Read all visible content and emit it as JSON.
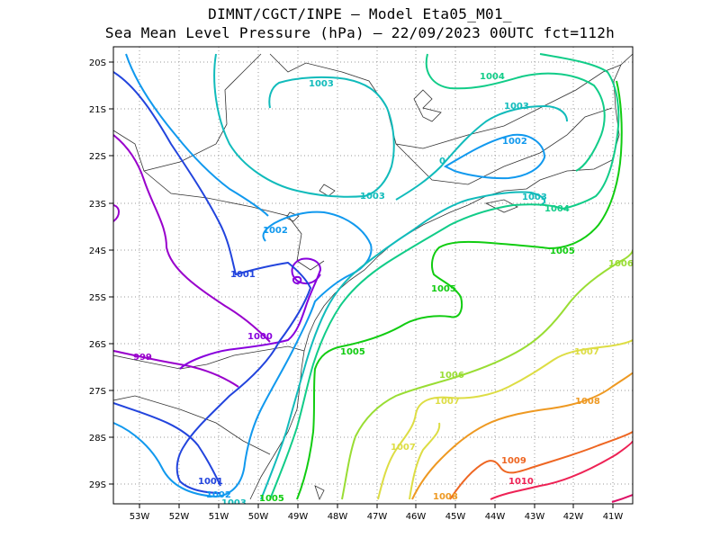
{
  "title": {
    "line1": "DIMNT/CGCT/INPE  —   Model Eta05_M01_",
    "line2": "Sea Mean Level Pressure (hPa) — 22/09/2023 00UTC fct=112h"
  },
  "axes": {
    "lat_labels": [
      "20S",
      "21S",
      "22S",
      "23S",
      "24S",
      "25S",
      "26S",
      "27S",
      "28S",
      "29S"
    ],
    "lon_labels": [
      "53W",
      "52W",
      "51W",
      "50W",
      "49W",
      "48W",
      "47W",
      "46W",
      "45W",
      "44W",
      "43W",
      "42W",
      "41W"
    ]
  },
  "colors": {
    "c999": "#9900cc",
    "c1000": "#8800dd",
    "c1001": "#2244dd",
    "c1002": "#1199ee",
    "c1003": "#11bbbb",
    "c1004": "#11cc88",
    "c1005": "#11cc11",
    "c1006": "#99dd33",
    "c1007": "#dddd44",
    "c1008": "#ee9922",
    "c1009": "#ee6622",
    "c1010": "#ee2255"
  },
  "contour_labels": [
    {
      "id": "1003-a",
      "text": "1003",
      "color": "#11bbbb"
    },
    {
      "id": "1004-a",
      "text": "1004",
      "color": "#11cc88"
    },
    {
      "id": "1003-b",
      "text": "1003",
      "color": "#11bbbb"
    },
    {
      "id": "1002-a",
      "text": "1002",
      "color": "#1199ee"
    },
    {
      "id": "0-a",
      "text": "0",
      "color": "#11bbbb"
    },
    {
      "id": "1003-c",
      "text": "1003",
      "color": "#11bbbb"
    },
    {
      "id": "1003-d",
      "text": "1003",
      "color": "#11bbbb"
    },
    {
      "id": "1004-b",
      "text": "1004",
      "color": "#11cc88"
    },
    {
      "id": "1002-b",
      "text": "1002",
      "color": "#1199ee"
    },
    {
      "id": "1005-a",
      "text": "1005",
      "color": "#11cc11"
    },
    {
      "id": "1001-a",
      "text": "1001",
      "color": "#2244dd"
    },
    {
      "id": "1006-a",
      "text": "1006",
      "color": "#99dd33"
    },
    {
      "id": "1005-b",
      "text": "1005",
      "color": "#11cc11"
    },
    {
      "id": "1000-a",
      "text": "1000",
      "color": "#8800dd"
    },
    {
      "id": "999-a",
      "text": "999",
      "color": "#9900cc"
    },
    {
      "id": "1005-c",
      "text": "1005",
      "color": "#11cc11"
    },
    {
      "id": "1007-a",
      "text": "1007",
      "color": "#dddd44"
    },
    {
      "id": "1006-b",
      "text": "1006",
      "color": "#99dd33"
    },
    {
      "id": "1007-b",
      "text": "1007",
      "color": "#dddd44"
    },
    {
      "id": "1008-a",
      "text": "1008",
      "color": "#ee9922"
    },
    {
      "id": "1007-c",
      "text": "1007",
      "color": "#dddd44"
    },
    {
      "id": "1009-a",
      "text": "1009",
      "color": "#ee6622"
    },
    {
      "id": "1001-b",
      "text": "1001",
      "color": "#2244dd"
    },
    {
      "id": "1010-a",
      "text": "1010",
      "color": "#ee2255"
    },
    {
      "id": "1002-c",
      "text": "1002",
      "color": "#1199ee"
    },
    {
      "id": "1008-b",
      "text": "1008",
      "color": "#ee9922"
    },
    {
      "id": "1003-e",
      "text": "1003",
      "color": "#11bbbb"
    },
    {
      "id": "1005-d",
      "text": "1005",
      "color": "#11cc11"
    }
  ]
}
